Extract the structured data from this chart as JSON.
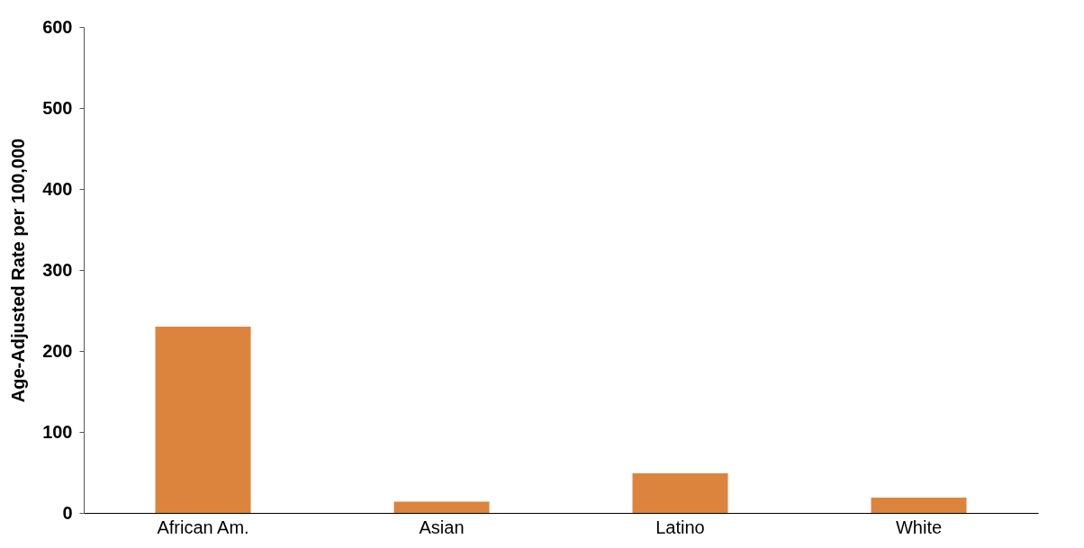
{
  "chart_data": {
    "type": "bar",
    "ylabel": "Age-Adjusted Rate per 100,000",
    "categories": [
      "African Am.",
      "Asian",
      "Latino",
      "White"
    ],
    "values": [
      230,
      14,
      49,
      19
    ],
    "color": "#dc843e",
    "ylim": [
      0,
      600
    ],
    "yticks": [
      0,
      100,
      200,
      300,
      400,
      500,
      600
    ],
    "grid": false
  }
}
